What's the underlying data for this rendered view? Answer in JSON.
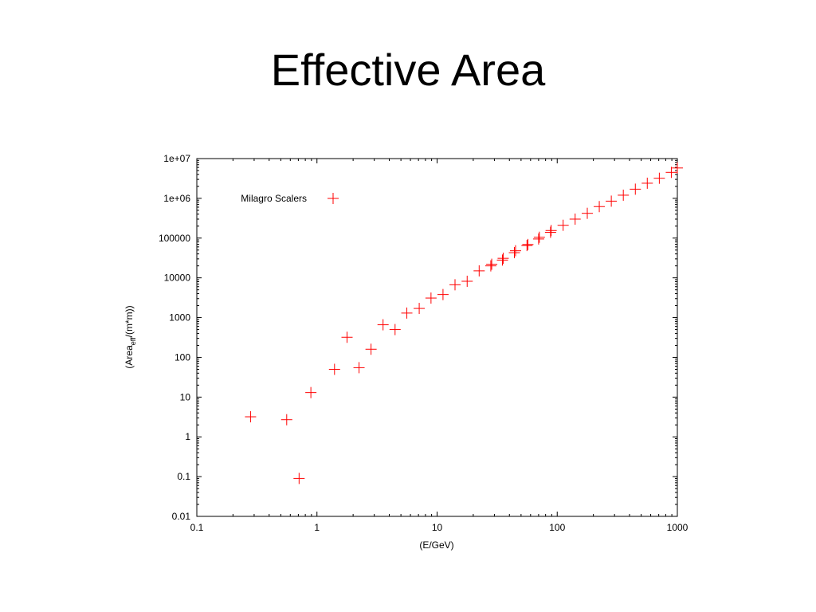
{
  "slide": {
    "title": "Effective Area"
  },
  "chart_data": {
    "type": "scatter",
    "title": "",
    "xlabel": "(E/GeV)",
    "ylabel": {
      "prefix": "(Area",
      "subscript": "eff",
      "suffix": "/(m*m))"
    },
    "x_scale": "log",
    "y_scale": "log",
    "xlim": [
      0.1,
      1000
    ],
    "ylim": [
      0.01,
      10000000
    ],
    "x_ticks": [
      0.1,
      1,
      10,
      100,
      1000
    ],
    "x_tick_labels": [
      "0.1",
      "1",
      "10",
      "100",
      "1000"
    ],
    "y_ticks": [
      0.01,
      0.1,
      1,
      10,
      100,
      1000,
      10000,
      100000,
      1000000,
      10000000
    ],
    "y_tick_labels": [
      "0.01",
      "0.1",
      "1",
      "10",
      "100",
      "1000",
      "10000",
      "100000",
      "1e+06",
      "1e+07"
    ],
    "grid": false,
    "legend": "top-left",
    "marker": "+",
    "color": "#ff0000",
    "series": [
      {
        "name": "Milagro Scalers",
        "points": [
          [
            0.28,
            3.2
          ],
          [
            0.56,
            2.7
          ],
          [
            0.71,
            0.09
          ],
          [
            0.89,
            13
          ],
          [
            1.4,
            50
          ],
          [
            1.78,
            320
          ],
          [
            2.24,
            55
          ],
          [
            2.82,
            160
          ],
          [
            3.55,
            660
          ],
          [
            4.47,
            500
          ],
          [
            5.6,
            1300
          ],
          [
            7.1,
            1700
          ],
          [
            8.9,
            3100
          ],
          [
            11.2,
            3800
          ],
          [
            14.1,
            6700
          ],
          [
            17.8,
            8200
          ],
          [
            22.4,
            15000
          ],
          [
            28,
            20000
          ],
          [
            28.5,
            22000
          ],
          [
            35,
            28000
          ],
          [
            35.5,
            31000
          ],
          [
            44,
            43000
          ],
          [
            45,
            48000
          ],
          [
            56,
            65000
          ],
          [
            57,
            69000
          ],
          [
            70,
            95000
          ],
          [
            71,
            105000
          ],
          [
            88,
            140000
          ],
          [
            89,
            155000
          ],
          [
            112,
            210000
          ],
          [
            141,
            300000
          ],
          [
            178,
            420000
          ],
          [
            224,
            620000
          ],
          [
            282,
            850000
          ],
          [
            355,
            1200000
          ],
          [
            447,
            1700000
          ],
          [
            562,
            2400000
          ],
          [
            708,
            3200000
          ],
          [
            891,
            4500000
          ],
          [
            1100,
            5800000
          ]
        ]
      }
    ]
  }
}
